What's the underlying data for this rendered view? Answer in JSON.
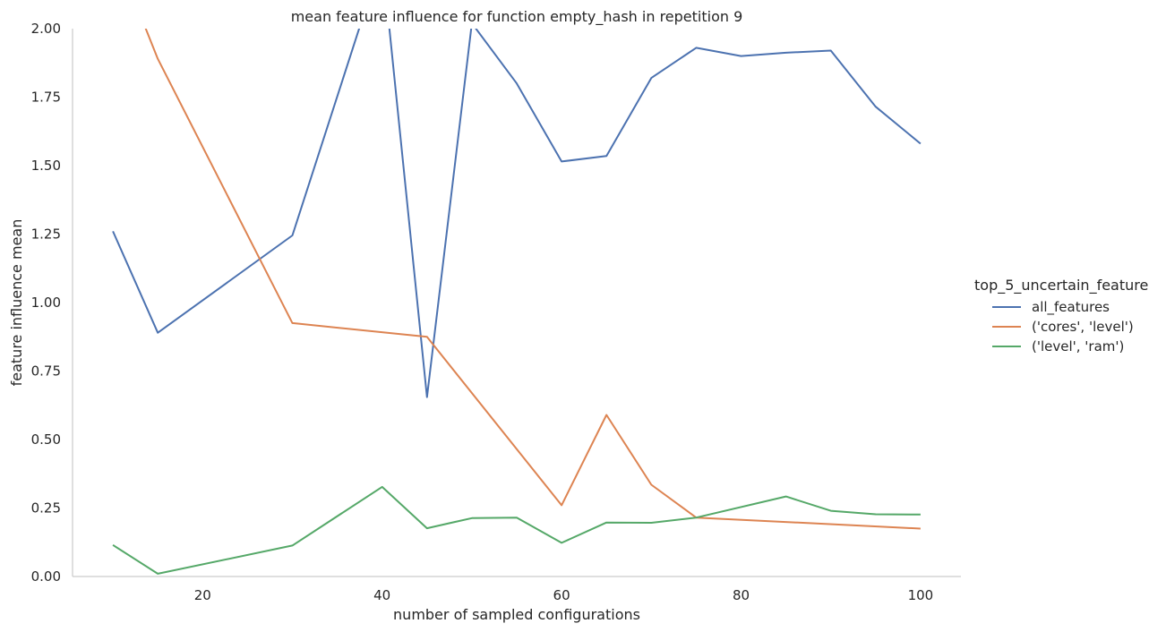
{
  "chart_data": {
    "type": "line",
    "title": "mean feature influence for function empty_hash in repetition 9",
    "xlabel": "number of sampled configurations",
    "ylabel": "feature influence mean",
    "xlim": [
      5.5,
      104.5
    ],
    "ylim": [
      0,
      2.0
    ],
    "xticks": [
      20,
      40,
      60,
      80,
      100
    ],
    "yticks": [
      "0.00",
      "0.25",
      "0.50",
      "0.75",
      "1.00",
      "1.25",
      "1.50",
      "1.75",
      "2.00"
    ],
    "grid": false,
    "legend": {
      "title": "top_5_uncertain_feature",
      "placement": "right"
    },
    "series": [
      {
        "name": "all_features",
        "color": "#4c72b0",
        "x": [
          10,
          15,
          30,
          40,
          45,
          50,
          55,
          60,
          65,
          70,
          75,
          80,
          85,
          90,
          95,
          100
        ],
        "y": [
          1.26,
          0.89,
          1.245,
          2.26,
          0.655,
          2.02,
          1.8,
          1.515,
          1.535,
          1.82,
          1.93,
          1.9,
          1.912,
          1.92,
          1.715,
          1.58
        ]
      },
      {
        "name": "('cores', 'level')",
        "color": "#dd8452",
        "x": [
          10,
          15,
          30,
          45,
          60,
          65,
          70,
          75,
          100
        ],
        "y": [
          2.3,
          1.89,
          0.925,
          0.875,
          0.26,
          0.59,
          0.335,
          0.215,
          0.175
        ]
      },
      {
        "name": "('level', 'ram')",
        "color": "#55a868",
        "x": [
          10,
          15,
          30,
          40,
          45,
          50,
          55,
          60,
          65,
          70,
          75,
          85,
          90,
          95,
          100
        ],
        "y": [
          0.115,
          0.01,
          0.113,
          0.327,
          0.176,
          0.213,
          0.215,
          0.123,
          0.197,
          0.196,
          0.215,
          0.292,
          0.24,
          0.227,
          0.226
        ]
      }
    ]
  }
}
